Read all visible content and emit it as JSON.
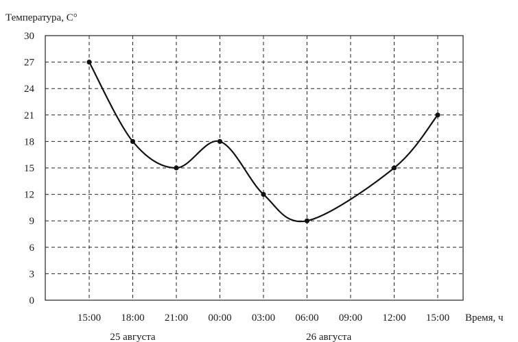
{
  "chart_data": {
    "type": "line",
    "ylabel": "Температура, С°",
    "xlabel": "Время, ч",
    "categories": [
      "15:00",
      "18:00",
      "21:00",
      "00:00",
      "03:00",
      "06:00",
      "09:00",
      "12:00",
      "15:00"
    ],
    "series": [
      {
        "values": [
          27,
          18,
          15,
          18,
          12,
          9,
          null,
          15,
          21
        ]
      }
    ],
    "yticks": [
      "0",
      "3",
      "6",
      "9",
      "12",
      "15",
      "18",
      "21",
      "24",
      "27",
      "30"
    ],
    "ylim": [
      0,
      30
    ],
    "grid": true,
    "date_labels": [
      {
        "text": "25 августа",
        "under": 1
      },
      {
        "text": "26 августа",
        "under": 5.5
      }
    ]
  }
}
